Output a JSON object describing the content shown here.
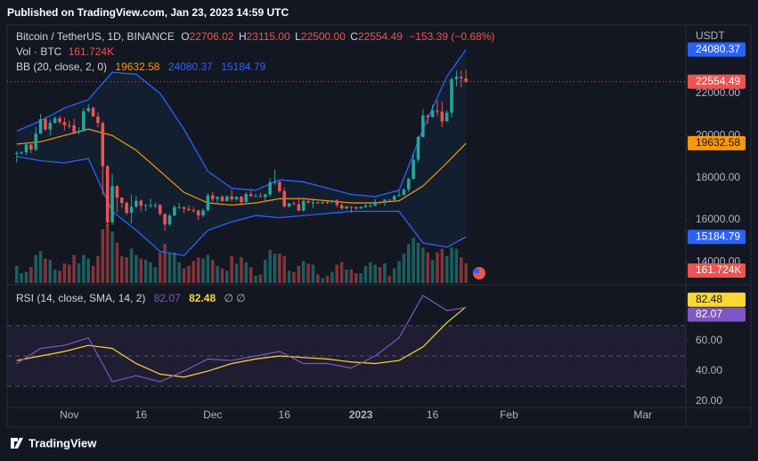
{
  "header": {
    "published": "Published on TradingView.com, Jan 23, 2023 14:59 UTC",
    "brand": "TradingView"
  },
  "chart_data": {
    "type": "candlestick",
    "symbol": "Bitcoin / TetherUS, 1D, BINANCE",
    "quote": [
      {
        "key": "O",
        "label": "22706.02"
      },
      {
        "key": "H",
        "label": "23115.00"
      },
      {
        "key": "L",
        "label": "22500.00"
      },
      {
        "key": "C",
        "label": "22554.49"
      }
    ],
    "change": "−153.39 (−0.68%)",
    "volume_title": "Vol · BTC",
    "volume_last_label": "161.724K",
    "bb_title": "BB (20, close, 2, 0)",
    "rsi_title": "RSI (14, close, SMA, 14, 2)",
    "rsi_extra": "∅ ∅",
    "currency": "USDT",
    "colors": {
      "up": "#26a69a",
      "down": "#ef5350",
      "bb": "#2962ff",
      "basis": "#ff9800",
      "rsi": "#7e57c2",
      "rsi_sma": "#fdd835"
    },
    "x": [
      "2022-10-21",
      "2022-10-22",
      "2022-10-23",
      "2022-10-24",
      "2022-10-25",
      "2022-10-26",
      "2022-10-27",
      "2022-10-28",
      "2022-10-29",
      "2022-10-30",
      "2022-10-31",
      "2022-11-01",
      "2022-11-02",
      "2022-11-03",
      "2022-11-04",
      "2022-11-05",
      "2022-11-06",
      "2022-11-07",
      "2022-11-08",
      "2022-11-09",
      "2022-11-10",
      "2022-11-11",
      "2022-11-12",
      "2022-11-13",
      "2022-11-14",
      "2022-11-15",
      "2022-11-16",
      "2022-11-17",
      "2022-11-18",
      "2022-11-19",
      "2022-11-20",
      "2022-11-21",
      "2022-11-22",
      "2022-11-23",
      "2022-11-24",
      "2022-11-25",
      "2022-11-26",
      "2022-11-27",
      "2022-11-28",
      "2022-11-29",
      "2022-11-30",
      "2022-12-01",
      "2022-12-02",
      "2022-12-03",
      "2022-12-04",
      "2022-12-05",
      "2022-12-06",
      "2022-12-07",
      "2022-12-08",
      "2022-12-09",
      "2022-12-10",
      "2022-12-11",
      "2022-12-12",
      "2022-12-13",
      "2022-12-14",
      "2022-12-15",
      "2022-12-16",
      "2022-12-17",
      "2022-12-18",
      "2022-12-19",
      "2022-12-20",
      "2022-12-21",
      "2022-12-22",
      "2022-12-23",
      "2022-12-24",
      "2022-12-25",
      "2022-12-26",
      "2022-12-27",
      "2022-12-28",
      "2022-12-29",
      "2022-12-30",
      "2022-12-31",
      "2023-01-01",
      "2023-01-02",
      "2023-01-03",
      "2023-01-04",
      "2023-01-05",
      "2023-01-06",
      "2023-01-07",
      "2023-01-08",
      "2023-01-09",
      "2023-01-10",
      "2023-01-11",
      "2023-01-12",
      "2023-01-13",
      "2023-01-14",
      "2023-01-15",
      "2023-01-16",
      "2023-01-17",
      "2023-01-18",
      "2023-01-19",
      "2023-01-20",
      "2023-01-21",
      "2023-01-22",
      "2023-01-23"
    ],
    "open": [
      19130,
      19160,
      19200,
      19570,
      19330,
      20090,
      20770,
      20290,
      20600,
      20820,
      20630,
      20490,
      20480,
      20150,
      20210,
      21150,
      21300,
      20900,
      20590,
      18540,
      15880,
      17590,
      17050,
      16800,
      16330,
      16620,
      16900,
      16660,
      16690,
      16700,
      16700,
      16280,
      15780,
      16200,
      16600,
      16600,
      16520,
      16460,
      16440,
      16200,
      16440,
      17160,
      16980,
      17090,
      16890,
      17110,
      16970,
      17090,
      16840,
      17220,
      17130,
      17130,
      17090,
      17200,
      17780,
      17800,
      17360,
      16630,
      16780,
      16740,
      16440,
      16900,
      16820,
      16820,
      16780,
      16840,
      16830,
      16920,
      16700,
      16540,
      16630,
      16600,
      16540,
      16610,
      16670,
      16670,
      16850,
      16830,
      16950,
      16940,
      17120,
      17180,
      17440,
      17940,
      18850,
      19930,
      20950,
      20870,
      21180,
      21130,
      20670,
      21080,
      22670,
      22780,
      22706.02
    ],
    "high": [
      19250,
      19250,
      19690,
      19600,
      20400,
      21020,
      20870,
      20750,
      20900,
      20930,
      20840,
      20700,
      20800,
      20390,
      21300,
      21480,
      21370,
      21080,
      20670,
      18600,
      18170,
      17650,
      17070,
      16880,
      17190,
      17130,
      16970,
      16750,
      17000,
      16820,
      16750,
      16290,
      16300,
      16700,
      16810,
      16620,
      16670,
      16600,
      16480,
      16540,
      17250,
      17320,
      17100,
      17170,
      17160,
      17420,
      17110,
      17140,
      17300,
      17360,
      17230,
      17270,
      17240,
      17980,
      18390,
      17850,
      17530,
      16800,
      16870,
      17060,
      17060,
      16910,
      16940,
      16870,
      16860,
      16870,
      16940,
      16970,
      16790,
      16670,
      16640,
      16630,
      16630,
      16760,
      16780,
      16990,
      16880,
      16990,
      16980,
      17180,
      17390,
      17490,
      18000,
      19100,
      19990,
      21260,
      21000,
      21460,
      21650,
      21600,
      21190,
      22750,
      23080,
      23070,
      23115
    ],
    "low": [
      18700,
      19100,
      19070,
      19160,
      19250,
      20060,
      20200,
      20000,
      20560,
      20520,
      20240,
      20330,
      20060,
      20050,
      20180,
      21080,
      20890,
      20390,
      17170,
      15680,
      15750,
      16360,
      16550,
      16230,
      15820,
      16550,
      16400,
      16400,
      16550,
      16550,
      16180,
      15480,
      15710,
      16170,
      16520,
      16330,
      16410,
      16340,
      15990,
      16120,
      16420,
      16860,
      16790,
      16860,
      16880,
      16870,
      16900,
      16680,
      16730,
      17060,
      17080,
      17070,
      16870,
      17100,
      17660,
      17280,
      16580,
      16580,
      16680,
      16400,
      16400,
      16750,
      16560,
      16760,
      16770,
      16740,
      16780,
      16590,
      16470,
      16490,
      16330,
      16470,
      16500,
      16550,
      16600,
      16650,
      16750,
      16650,
      16910,
      16910,
      17110,
      17150,
      17320,
      17910,
      18720,
      19890,
      20550,
      20850,
      20920,
      20400,
      20660,
      20860,
      22330,
      22300,
      22500
    ],
    "close": [
      19160,
      19200,
      19570,
      19330,
      20090,
      20770,
      20290,
      20600,
      20820,
      20630,
      20490,
      20480,
      20150,
      20210,
      21150,
      21300,
      20900,
      20590,
      18540,
      15880,
      17590,
      17050,
      16800,
      16330,
      16620,
      16900,
      16660,
      16690,
      16700,
      16700,
      16280,
      15780,
      16200,
      16600,
      16600,
      16520,
      16460,
      16440,
      16200,
      16440,
      17160,
      16980,
      17090,
      16890,
      17110,
      16970,
      17090,
      16840,
      17220,
      17130,
      17130,
      17090,
      17200,
      17780,
      17800,
      17360,
      16630,
      16780,
      16740,
      16440,
      16900,
      16820,
      16820,
      16780,
      16840,
      16830,
      16920,
      16700,
      16540,
      16630,
      16600,
      16540,
      16610,
      16670,
      16670,
      16850,
      16830,
      16950,
      16940,
      17120,
      17180,
      17440,
      17940,
      18850,
      19930,
      20950,
      20870,
      21180,
      21130,
      20670,
      21080,
      22670,
      22780,
      22710,
      22554.49
    ],
    "volume": [
      140,
      80,
      90,
      130,
      230,
      260,
      200,
      190,
      110,
      100,
      160,
      150,
      230,
      160,
      230,
      200,
      140,
      220,
      440,
      480,
      420,
      330,
      220,
      210,
      280,
      230,
      200,
      190,
      170,
      130,
      250,
      320,
      240,
      250,
      170,
      120,
      140,
      180,
      210,
      200,
      230,
      190,
      140,
      120,
      100,
      220,
      160,
      210,
      170,
      130,
      60,
      70,
      190,
      270,
      240,
      240,
      220,
      100,
      90,
      140,
      180,
      160,
      150,
      70,
      40,
      60,
      90,
      150,
      170,
      110,
      110,
      80,
      80,
      140,
      170,
      150,
      130,
      160,
      60,
      120,
      180,
      240,
      320,
      370,
      330,
      290,
      250,
      190,
      250,
      280,
      220,
      290,
      280,
      210,
      161.724
    ],
    "volume_ylim": [
      0,
      2060
    ],
    "xlim": [
      "2022-10-19",
      "2023-03-10"
    ],
    "xticks": [
      {
        "value": "2022-11-01",
        "label": "Nov"
      },
      {
        "value": "2022-11-16",
        "label": "16"
      },
      {
        "value": "2022-12-01",
        "label": "Dec"
      },
      {
        "value": "2022-12-16",
        "label": "16"
      },
      {
        "value": "2023-01-01",
        "label": "2023"
      },
      {
        "value": "2023-01-16",
        "label": "16"
      },
      {
        "value": "2023-02-01",
        "label": "Feb"
      },
      {
        "value": "2023-03-01",
        "label": "Mar"
      }
    ],
    "ylim": [
      13000,
      24950
    ],
    "yticks": [
      {
        "value": 14000,
        "label": "14000.00"
      },
      {
        "value": 16000,
        "label": "16000.00"
      },
      {
        "value": 18000,
        "label": "18000.00"
      },
      {
        "value": 20000,
        "label": "20000.00"
      },
      {
        "value": 22000,
        "label": "22000.00"
      }
    ],
    "indicator_x": [
      "2022-10-21",
      "2022-10-26",
      "2022-10-31",
      "2022-11-05",
      "2022-11-10",
      "2022-11-15",
      "2022-11-20",
      "2022-11-25",
      "2022-11-30",
      "2022-12-05",
      "2022-12-10",
      "2022-12-15",
      "2022-12-20",
      "2022-12-25",
      "2022-12-30",
      "2023-01-04",
      "2023-01-09",
      "2023-01-14",
      "2023-01-19",
      "2023-01-23"
    ],
    "bb_basis": [
      19590,
      19700,
      20000,
      20300,
      20000,
      19300,
      18300,
      17300,
      16800,
      16700,
      16800,
      17000,
      17000,
      16900,
      16800,
      16800,
      16900,
      17600,
      18700,
      19632.58
    ],
    "bb_upper": [
      20200,
      20700,
      21300,
      21700,
      23000,
      22900,
      22000,
      20300,
      18300,
      17500,
      17400,
      17900,
      17800,
      17500,
      17200,
      17100,
      17400,
      20300,
      22800,
      24080.37
    ],
    "bb_lower": [
      19000,
      18800,
      18700,
      18900,
      16400,
      15500,
      14500,
      14300,
      15500,
      15900,
      16200,
      16100,
      16200,
      16300,
      16400,
      16400,
      16400,
      14900,
      14700,
      15184.79
    ],
    "rsi": [
      45,
      55,
      57,
      62,
      33,
      37,
      33,
      40,
      48,
      47,
      50,
      53,
      45,
      45,
      42,
      50,
      62,
      90,
      80,
      82.07
    ],
    "rsi_sma": [
      47,
      50,
      53,
      57,
      55,
      45,
      38,
      36,
      40,
      45,
      48,
      50,
      49,
      48,
      46,
      45,
      47,
      56,
      72,
      82.48
    ],
    "rsi_ylim": [
      13.5,
      95.3
    ],
    "rsi_yticks": [
      {
        "value": 20,
        "label": "20.00"
      },
      {
        "value": 40,
        "label": "40.00"
      },
      {
        "value": 60,
        "label": "60.00"
      }
    ],
    "rsi_levels": [
      70,
      50,
      30
    ],
    "grid": false
  }
}
